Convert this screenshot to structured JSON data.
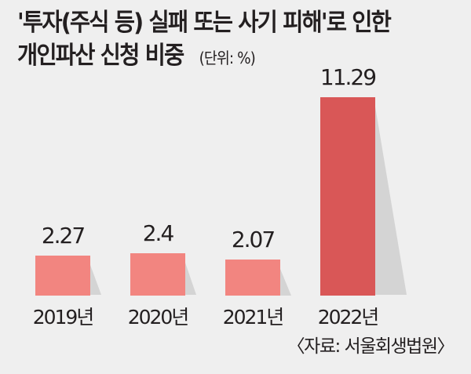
{
  "title": {
    "line1": "'투자(주식 등) 실패 또는 사기 피해'로 인한",
    "line2": "개인파산 신청 비중",
    "unit": "(단위: %)"
  },
  "source": "〈자료: 서울회생법원〉",
  "colors": {
    "background": "#efefef",
    "bar": "#f28580",
    "bar_highlight": "#d95757",
    "text": "#231f20"
  },
  "chart_data": {
    "type": "bar",
    "title": "'투자(주식 등) 실패 또는 사기 피해'로 인한 개인파산 신청 비중",
    "unit": "%",
    "categories": [
      "2019년",
      "2020년",
      "2021년",
      "2022년"
    ],
    "values": [
      2.27,
      2.4,
      2.07,
      11.29
    ],
    "value_labels": [
      "2.27",
      "2.4",
      "2.07",
      "11.29"
    ],
    "xlabel": "",
    "ylabel": "",
    "grid": false,
    "legend": false,
    "source": "서울회생법원"
  }
}
